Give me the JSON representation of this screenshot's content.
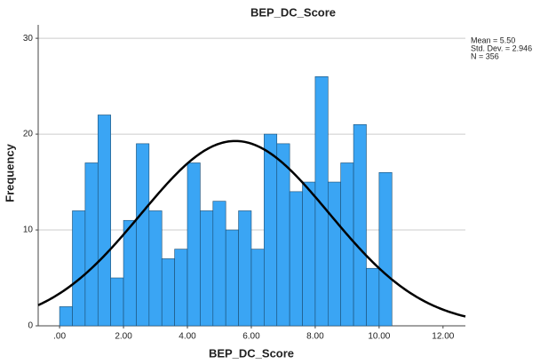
{
  "chart_data": {
    "type": "histogram",
    "title": "BEP_DC_Score",
    "x_label": "BEP_DC_Score",
    "y_label": "Frequency",
    "bins": [
      0,
      0.4,
      0.8,
      1.2,
      1.6,
      2,
      2.4,
      2.8,
      3.2,
      3.6,
      4,
      4.4,
      4.8,
      5.2,
      5.6,
      6,
      6.4,
      6.8,
      7.2,
      7.6,
      8,
      8.4,
      8.8,
      9.2,
      9.6,
      10,
      10.4
    ],
    "values": [
      2,
      12,
      17,
      22,
      5,
      11,
      19,
      12,
      7,
      8,
      17,
      12,
      13,
      10,
      12,
      8,
      20,
      19,
      14,
      15,
      26,
      15,
      17,
      21,
      6,
      16
    ],
    "color": "#3aa5f4",
    "curve_color": "#000000",
    "stats": [
      {
        "value": 5.5,
        "label": "Mean = 5.50"
      },
      {
        "value": 2.946,
        "label": "Std. Dev. = 2.946"
      },
      {
        "value": 356,
        "label": "N = 356"
      }
    ],
    "xlim": [
      -0.67,
      12.7
    ],
    "ylim": [
      0,
      31.4
    ],
    "xticks": [
      {
        "value": 0,
        "label": ".00"
      },
      {
        "value": 2,
        "label": "2.00"
      },
      {
        "value": 4,
        "label": "4.00"
      },
      {
        "value": 6,
        "label": "6.00"
      },
      {
        "value": 8,
        "label": "8.00"
      },
      {
        "value": 10,
        "label": "10.00"
      },
      {
        "value": 12,
        "label": "12.00"
      }
    ],
    "yticks": [
      0,
      10,
      20,
      30
    ],
    "grid": true
  }
}
